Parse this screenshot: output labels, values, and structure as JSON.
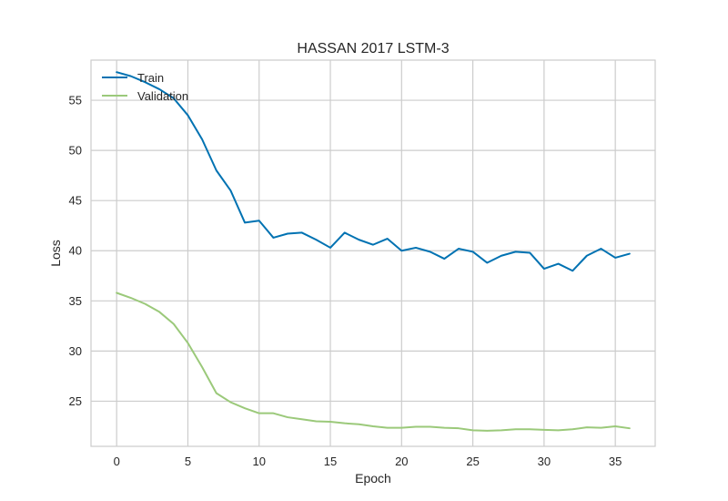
{
  "chart_data": {
    "type": "line",
    "title": "HASSAN 2017 LSTM-3",
    "xlabel": "Epoch",
    "ylabel": "Loss",
    "xlim": [
      -1.8,
      37.8
    ],
    "ylim": [
      20.5,
      59.0
    ],
    "xticks": [
      0,
      5,
      10,
      15,
      20,
      25,
      30,
      35
    ],
    "yticks": [
      25,
      30,
      35,
      40,
      45,
      50,
      55
    ],
    "grid": true,
    "legend_position": "top-left",
    "x": [
      0,
      1,
      2,
      3,
      4,
      5,
      6,
      7,
      8,
      9,
      10,
      11,
      12,
      13,
      14,
      15,
      16,
      17,
      18,
      19,
      20,
      21,
      22,
      23,
      24,
      25,
      26,
      27,
      28,
      29,
      30,
      31,
      32,
      33,
      34,
      35,
      36
    ],
    "series": [
      {
        "name": "Train",
        "color": "#0072B2",
        "values": [
          57.8,
          57.4,
          56.8,
          56.1,
          55.2,
          53.5,
          51.1,
          48.0,
          46.0,
          42.8,
          43.0,
          41.3,
          41.7,
          41.8,
          41.1,
          40.3,
          41.8,
          41.1,
          40.6,
          41.2,
          40.0,
          40.3,
          39.9,
          39.2,
          40.2,
          39.9,
          38.8,
          39.5,
          39.9,
          39.8,
          38.2,
          38.7,
          38.0,
          39.5,
          40.2,
          39.3,
          39.7
        ]
      },
      {
        "name": "Validation",
        "color": "#9BC97A",
        "values": [
          35.8,
          35.3,
          34.7,
          33.9,
          32.7,
          30.8,
          28.4,
          25.8,
          24.9,
          24.3,
          23.8,
          23.8,
          23.4,
          23.2,
          23.0,
          22.95,
          22.8,
          22.7,
          22.5,
          22.35,
          22.35,
          22.45,
          22.45,
          22.35,
          22.3,
          22.1,
          22.05,
          22.1,
          22.2,
          22.2,
          22.15,
          22.1,
          22.2,
          22.4,
          22.35,
          22.5,
          22.3
        ]
      }
    ]
  }
}
